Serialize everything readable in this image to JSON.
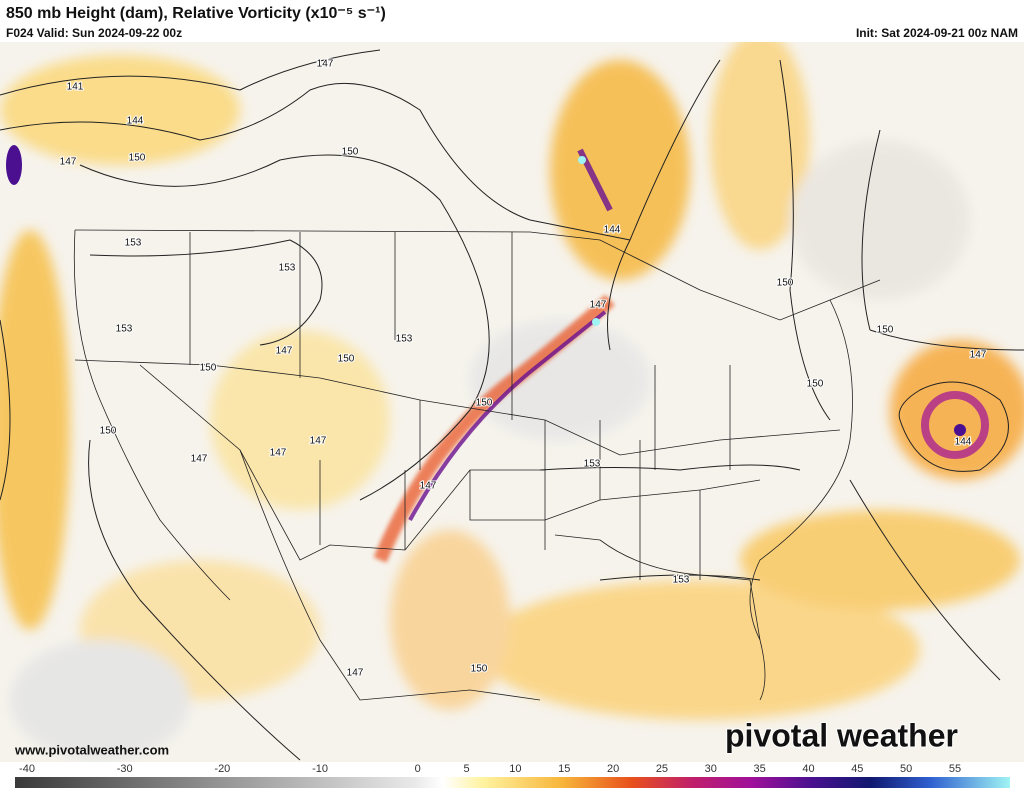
{
  "header": {
    "title": "850 mb Height (dam), Relative Vorticity (x10⁻⁵ s⁻¹)",
    "valid": "F024 Valid: Sun 2024-09-22 00z",
    "init": "Init: Sat 2024-09-21 00z NAM"
  },
  "contour_labels": [
    "141",
    "144",
    "147",
    "150",
    "147",
    "150",
    "153",
    "153",
    "153",
    "147",
    "150",
    "150",
    "153",
    "150",
    "147",
    "147",
    "147",
    "150",
    "147",
    "144",
    "147",
    "150",
    "150",
    "150",
    "147",
    "144",
    "153",
    "153",
    "150",
    "147"
  ],
  "footer": {
    "website": "www.pivotalweather.com",
    "logo": "pivotal weather"
  },
  "colorbar": {
    "ticks": [
      -40,
      -30,
      -20,
      -10,
      0,
      5,
      10,
      15,
      20,
      25,
      30,
      35,
      40,
      45,
      50,
      55
    ]
  }
}
